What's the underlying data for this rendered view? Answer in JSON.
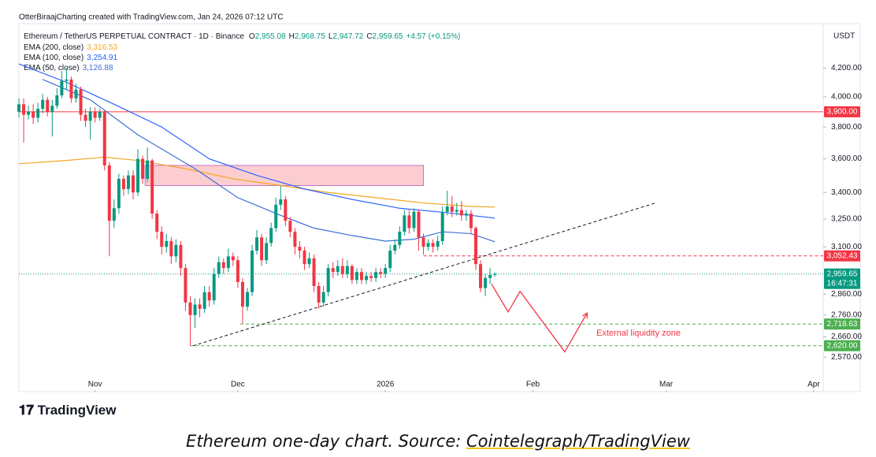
{
  "credit": "OtterBiraajCharting created with TradingView.com, Jan 24, 2026 07:12 UTC",
  "brand": "TradingView",
  "caption": {
    "text": "Ethereum one-day chart. Source: ",
    "link": "Cointelegraph/TradingView"
  },
  "chart_data": {
    "type": "candlestick",
    "title": "Ethereum / TetherUS PERPETUAL CONTRACT · 1D · Binance",
    "ohlc": [
      {
        "key": "O",
        "value": "2,955.08"
      },
      {
        "key": "H",
        "value": "2,968.75"
      },
      {
        "key": "L",
        "value": "2,947.72"
      },
      {
        "key": "C",
        "value": "2,959.65"
      }
    ],
    "change": "+4.57 (+0.15%)",
    "currency": "USDT",
    "log_scale": true,
    "ylim": [
      2430,
      4500
    ],
    "yticks": [
      {
        "value": 4200,
        "label": "4,200.00"
      },
      {
        "value": 4000,
        "label": "4,000.00"
      },
      {
        "value": 3800,
        "label": "3,800.00"
      },
      {
        "value": 3600,
        "label": "3,600.00"
      },
      {
        "value": 3400,
        "label": "3,400.00"
      },
      {
        "value": 3250,
        "label": "3,250.00"
      },
      {
        "value": 3100,
        "label": "3,100.00"
      },
      {
        "value": 2860,
        "label": "2,860.00"
      },
      {
        "value": 2760,
        "label": "2,760.00"
      },
      {
        "value": 2660,
        "label": "2,660.00"
      },
      {
        "value": 2570,
        "label": "2,570.00"
      }
    ],
    "xlim": [
      0,
      169
    ],
    "xticks": [
      {
        "value": 16,
        "label": "Nov"
      },
      {
        "value": 46,
        "label": "Dec"
      },
      {
        "value": 77,
        "label": "2026"
      },
      {
        "value": 108,
        "label": "Feb"
      },
      {
        "value": 136,
        "label": "Mar"
      },
      {
        "value": 167,
        "label": "Apr"
      }
    ],
    "candles": {
      "up_color": "#089981",
      "down_color": "#f23645",
      "x": [
        0,
        1,
        2,
        3,
        4,
        5,
        6,
        7,
        8,
        9,
        10,
        11,
        12,
        13,
        14,
        15,
        16,
        17,
        18,
        19,
        20,
        21,
        22,
        23,
        24,
        25,
        26,
        27,
        28,
        29,
        30,
        31,
        32,
        33,
        34,
        35,
        36,
        37,
        38,
        39,
        40,
        41,
        42,
        43,
        44,
        45,
        46,
        47,
        48,
        49,
        50,
        51,
        52,
        53,
        54,
        55,
        56,
        57,
        58,
        59,
        60,
        61,
        62,
        63,
        64,
        65,
        66,
        67,
        68,
        69,
        70,
        71,
        72,
        73,
        74,
        75,
        76,
        77,
        78,
        79,
        80,
        81,
        82,
        83,
        84,
        85,
        86,
        87,
        88,
        89,
        90,
        91,
        92,
        93,
        94,
        95,
        96,
        97,
        98,
        99,
        100
      ],
      "open": [
        3900,
        3950,
        3880,
        3900,
        3860,
        3920,
        3980,
        3900,
        3940,
        4010,
        4110,
        4120,
        3990,
        4050,
        3880,
        3840,
        3900,
        3860,
        3900,
        3560,
        3240,
        3310,
        3480,
        3420,
        3500,
        3400,
        3600,
        3480,
        3590,
        3280,
        3180,
        3100,
        3130,
        3050,
        3110,
        2990,
        2820,
        2760,
        2810,
        2790,
        2870,
        2830,
        2960,
        3020,
        2990,
        3050,
        3030,
        2920,
        2800,
        2870,
        3080,
        3150,
        3030,
        3120,
        3200,
        3330,
        3360,
        3240,
        3180,
        3100,
        3080,
        3010,
        3040,
        2900,
        2820,
        2870,
        2990,
        2970,
        3000,
        2960,
        3000,
        2930,
        2970,
        2930,
        2950,
        2940,
        2970,
        2960,
        2990,
        3080,
        3110,
        3180,
        3270,
        3200,
        3290,
        3150,
        3100,
        3120,
        3100,
        3130,
        3290,
        3320,
        3290,
        3300,
        3270,
        3280,
        3200,
        3010,
        2890,
        2940,
        2955.08
      ],
      "high": [
        3990,
        3990,
        3940,
        3950,
        3960,
        4020,
        4000,
        3980,
        4060,
        4180,
        4200,
        4140,
        4090,
        4070,
        3920,
        3930,
        3930,
        3920,
        3910,
        3580,
        3360,
        3510,
        3500,
        3530,
        3530,
        3660,
        3620,
        3670,
        3600,
        3300,
        3210,
        3170,
        3150,
        3140,
        3130,
        3010,
        2850,
        2840,
        2840,
        2900,
        2900,
        2990,
        3050,
        3040,
        3090,
        3070,
        3050,
        2940,
        2890,
        3110,
        3190,
        3170,
        3150,
        3230,
        3370,
        3440,
        3380,
        3260,
        3200,
        3130,
        3100,
        3070,
        3060,
        2920,
        2900,
        3010,
        3020,
        3030,
        3040,
        3030,
        3010,
        2990,
        2990,
        2970,
        2970,
        2990,
        2990,
        3010,
        3110,
        3140,
        3210,
        3300,
        3300,
        3310,
        3300,
        3170,
        3140,
        3140,
        3160,
        3320,
        3410,
        3380,
        3340,
        3350,
        3300,
        3300,
        3210,
        3030,
        2960,
        2990,
        2968.75
      ],
      "low": [
        3860,
        3700,
        3850,
        3820,
        3830,
        3890,
        3870,
        3740,
        3920,
        3990,
        4050,
        3960,
        3960,
        3840,
        3800,
        3720,
        3830,
        3840,
        3530,
        3050,
        3200,
        3280,
        3380,
        3390,
        3360,
        3380,
        3450,
        3460,
        3250,
        3140,
        3060,
        3070,
        3010,
        3020,
        2950,
        2780,
        2620,
        2700,
        2750,
        2770,
        2800,
        2810,
        2940,
        2960,
        2970,
        3000,
        2890,
        2720,
        2780,
        2850,
        3060,
        3000,
        3010,
        3100,
        3180,
        3300,
        3210,
        3150,
        3060,
        3040,
        2980,
        2990,
        2870,
        2790,
        2800,
        2850,
        2940,
        2950,
        2940,
        2940,
        2910,
        2910,
        2910,
        2910,
        2920,
        2920,
        2940,
        2940,
        2970,
        3060,
        3090,
        3160,
        3170,
        3180,
        3080,
        3060,
        3080,
        3070,
        3080,
        3110,
        3270,
        3260,
        3270,
        3240,
        3240,
        3170,
        2980,
        2870,
        2850,
        2910,
        2947.72
      ],
      "close": [
        3950,
        3880,
        3900,
        3860,
        3920,
        3980,
        3900,
        3940,
        4010,
        4110,
        4120,
        3990,
        4050,
        3880,
        3840,
        3900,
        3860,
        3900,
        3560,
        3240,
        3310,
        3480,
        3420,
        3500,
        3400,
        3600,
        3480,
        3590,
        3280,
        3180,
        3100,
        3130,
        3050,
        3110,
        2990,
        2820,
        2760,
        2810,
        2790,
        2870,
        2830,
        2960,
        3020,
        2990,
        3050,
        3030,
        2920,
        2800,
        2870,
        3080,
        3150,
        3030,
        3120,
        3200,
        3330,
        3360,
        3240,
        3180,
        3100,
        3080,
        3010,
        3040,
        2900,
        2820,
        2870,
        2990,
        2970,
        3000,
        2960,
        3000,
        2930,
        2970,
        2930,
        2950,
        2940,
        2970,
        2960,
        2990,
        3080,
        3110,
        3180,
        3270,
        3200,
        3290,
        3150,
        3100,
        3120,
        3100,
        3130,
        3290,
        3320,
        3290,
        3300,
        3270,
        3280,
        3200,
        3010,
        2890,
        2940,
        2955.08,
        2959.65
      ]
    },
    "series": [
      {
        "name": "EMA (200, close)",
        "last_label": "3,316.53",
        "color": "#f5a623",
        "x": [
          0,
          10,
          18,
          25,
          35,
          45,
          55,
          65,
          75,
          85,
          95,
          100
        ],
        "values": [
          3570,
          3590,
          3610,
          3590,
          3540,
          3480,
          3440,
          3400,
          3370,
          3340,
          3320,
          3316.53
        ]
      },
      {
        "name": "EMA (100, close)",
        "last_label": "3,254.91",
        "color": "#2962ff",
        "x": [
          0,
          10,
          20,
          30,
          40,
          50,
          60,
          70,
          80,
          90,
          100
        ],
        "values": [
          4230,
          4100,
          3950,
          3800,
          3600,
          3500,
          3420,
          3360,
          3310,
          3285,
          3254.91
        ]
      },
      {
        "name": "EMA (50, close)",
        "last_label": "3,126.88",
        "color": "#3f6fd8",
        "x": [
          5,
          15,
          25,
          37,
          46,
          55,
          62,
          70,
          77,
          83,
          89,
          95,
          100
        ],
        "values": [
          4120,
          3980,
          3750,
          3540,
          3370,
          3270,
          3200,
          3160,
          3130,
          3140,
          3180,
          3170,
          3126.88
        ]
      }
    ],
    "levels": [
      {
        "value": 3900,
        "label": "3,900.00",
        "color": "#f23645",
        "style": "solid",
        "from": 0
      },
      {
        "value": 3052.43,
        "label": "3,052.43",
        "color": "#f23645",
        "style": "dashed",
        "from": 85
      },
      {
        "value": 2959.65,
        "label": "2,959.65",
        "timer": "16:47:31",
        "color": "#089981",
        "style": "dotted",
        "from": 0
      },
      {
        "value": 2718.63,
        "label": "2,718.63",
        "color": "#4caf50",
        "style": "dashed",
        "from": 46.5
      },
      {
        "value": 2620,
        "label": "2,620.00",
        "color": "#4caf50",
        "style": "dashed",
        "from": 36
      }
    ],
    "zone": {
      "x": [
        26.5,
        85
      ],
      "y": [
        3440,
        3560
      ],
      "color": "#f23645"
    },
    "trendline": {
      "x": [
        36.6,
        133.8
      ],
      "values": [
        2620,
        3340
      ]
    },
    "projection": {
      "x": [
        99.3,
        102.8,
        105.3,
        114.7,
        119.4
      ],
      "values": [
        2910,
        2775,
        2874,
        2593,
        2770
      ],
      "color": "#f23645"
    },
    "annotation": "External liquidity zone"
  }
}
